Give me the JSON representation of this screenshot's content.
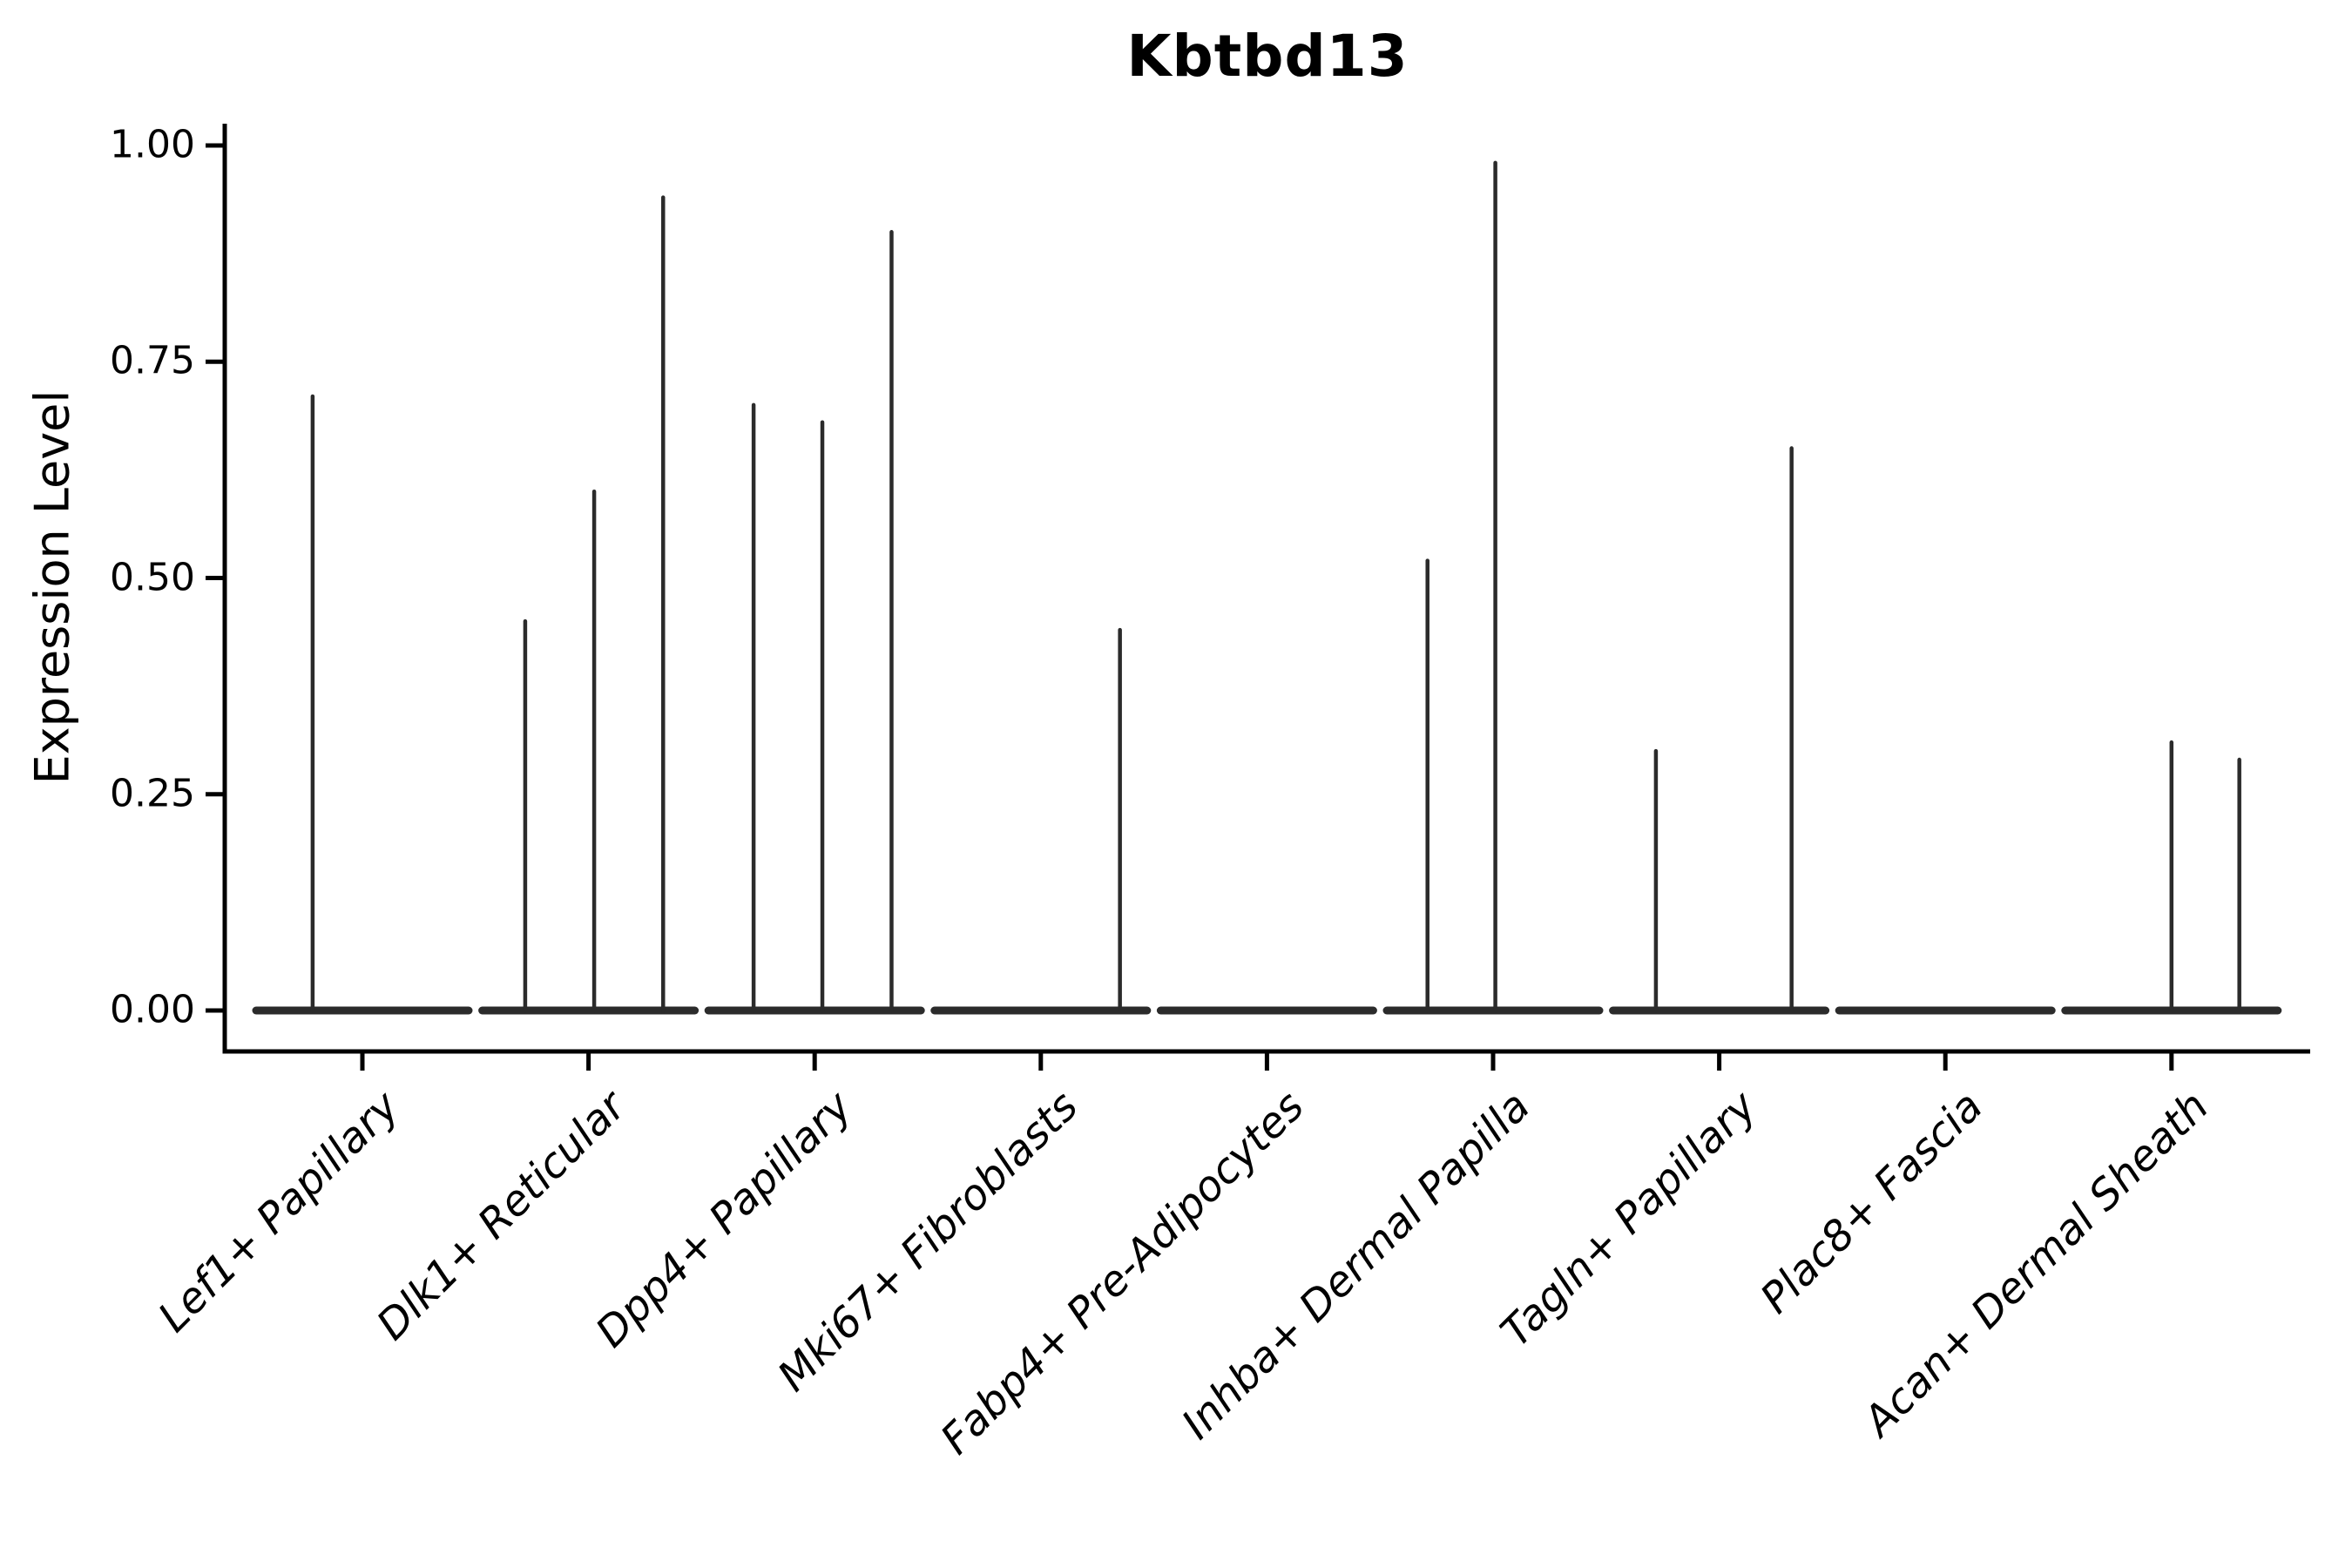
{
  "chart_data": {
    "type": "violin",
    "title": "Kbtbd13",
    "ylabel": "Expression Level",
    "xlabel": "",
    "ylim": [
      0.0,
      1.0
    ],
    "grid": false,
    "legend": "none",
    "yticks": [
      {
        "value": 0.0,
        "label": "0.00"
      },
      {
        "value": 0.25,
        "label": "0.25"
      },
      {
        "value": 0.5,
        "label": "0.50"
      },
      {
        "value": 0.75,
        "label": "0.75"
      },
      {
        "value": 1.0,
        "label": "1.00"
      }
    ],
    "violin_halfwidth": 0.47,
    "categories": [
      {
        "label": "Lef1+ Papillary",
        "points": [
          {
            "offset": -0.22,
            "value": 0.71
          }
        ]
      },
      {
        "label": "Dlk1+ Reticular",
        "points": [
          {
            "offset": -0.28,
            "value": 0.45
          },
          {
            "offset": 0.025,
            "value": 0.6
          },
          {
            "offset": 0.33,
            "value": 0.94
          }
        ]
      },
      {
        "label": "Dpp4+ Papillary",
        "points": [
          {
            "offset": -0.27,
            "value": 0.7
          },
          {
            "offset": 0.034,
            "value": 0.68
          },
          {
            "offset": 0.34,
            "value": 0.9
          }
        ]
      },
      {
        "label": "Mki67+ Fibroblasts",
        "points": [
          {
            "offset": 0.35,
            "value": 0.44
          }
        ]
      },
      {
        "label": "Fabp4+ Pre-Adipocytes",
        "points": []
      },
      {
        "label": "Inhba+ Dermal Papilla",
        "points": [
          {
            "offset": -0.29,
            "value": 0.52
          },
          {
            "offset": 0.01,
            "value": 0.98
          }
        ]
      },
      {
        "label": "Tagln+ Papillary",
        "points": [
          {
            "offset": -0.28,
            "value": 0.3
          },
          {
            "offset": 0.32,
            "value": 0.65
          }
        ]
      },
      {
        "label": "Plac8+ Fascia",
        "points": []
      },
      {
        "label": "Acan+ Dermal Sheath",
        "points": [
          {
            "offset": 0.0,
            "value": 0.31
          },
          {
            "offset": 0.3,
            "value": 0.29
          }
        ]
      }
    ],
    "colors": {
      "violin": "#2b2b2b",
      "axis": "#000000",
      "text": "#000000",
      "background": "#ffffff"
    }
  }
}
